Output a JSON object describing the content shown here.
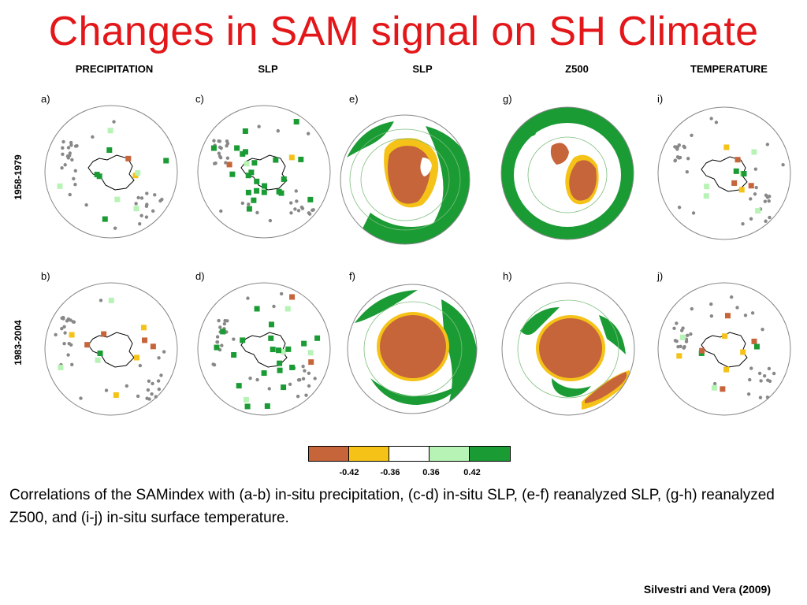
{
  "title": "Changes in SAM signal on SH Climate",
  "columns": [
    "PRECIPITATION",
    "SLP",
    "SLP",
    "Z500",
    "TEMPERATURE"
  ],
  "rows": [
    "1958-1979",
    "1983-2004"
  ],
  "panels": {
    "top": [
      "a)",
      "c)",
      "e)",
      "g)",
      "i)"
    ],
    "bottom": [
      "b)",
      "d)",
      "f)",
      "h)",
      "j)"
    ]
  },
  "colorbar": {
    "colors": [
      "#c6643a",
      "#f5c218",
      "#ffffff",
      "#b8f3b6",
      "#1a9b34"
    ],
    "ticks": [
      "-0.42",
      "-0.36",
      "0.36",
      "0.42"
    ]
  },
  "caption": "Correlations of the SAMindex with (a-b) in-situ precipitation, (c-d) in-situ SLP, (e-f) reanalyzed SLP, (g-h) reanalyzed Z500, and (i-j) in-situ surface temperature.",
  "citation": "Silvestri and Vera (2009)",
  "colors": {
    "title": "#e3171a",
    "negative_strong": "#c6643a",
    "negative_weak": "#f5c218",
    "positive_weak": "#b8f3b6",
    "positive_strong": "#1a9b34",
    "station": "#888888"
  }
}
